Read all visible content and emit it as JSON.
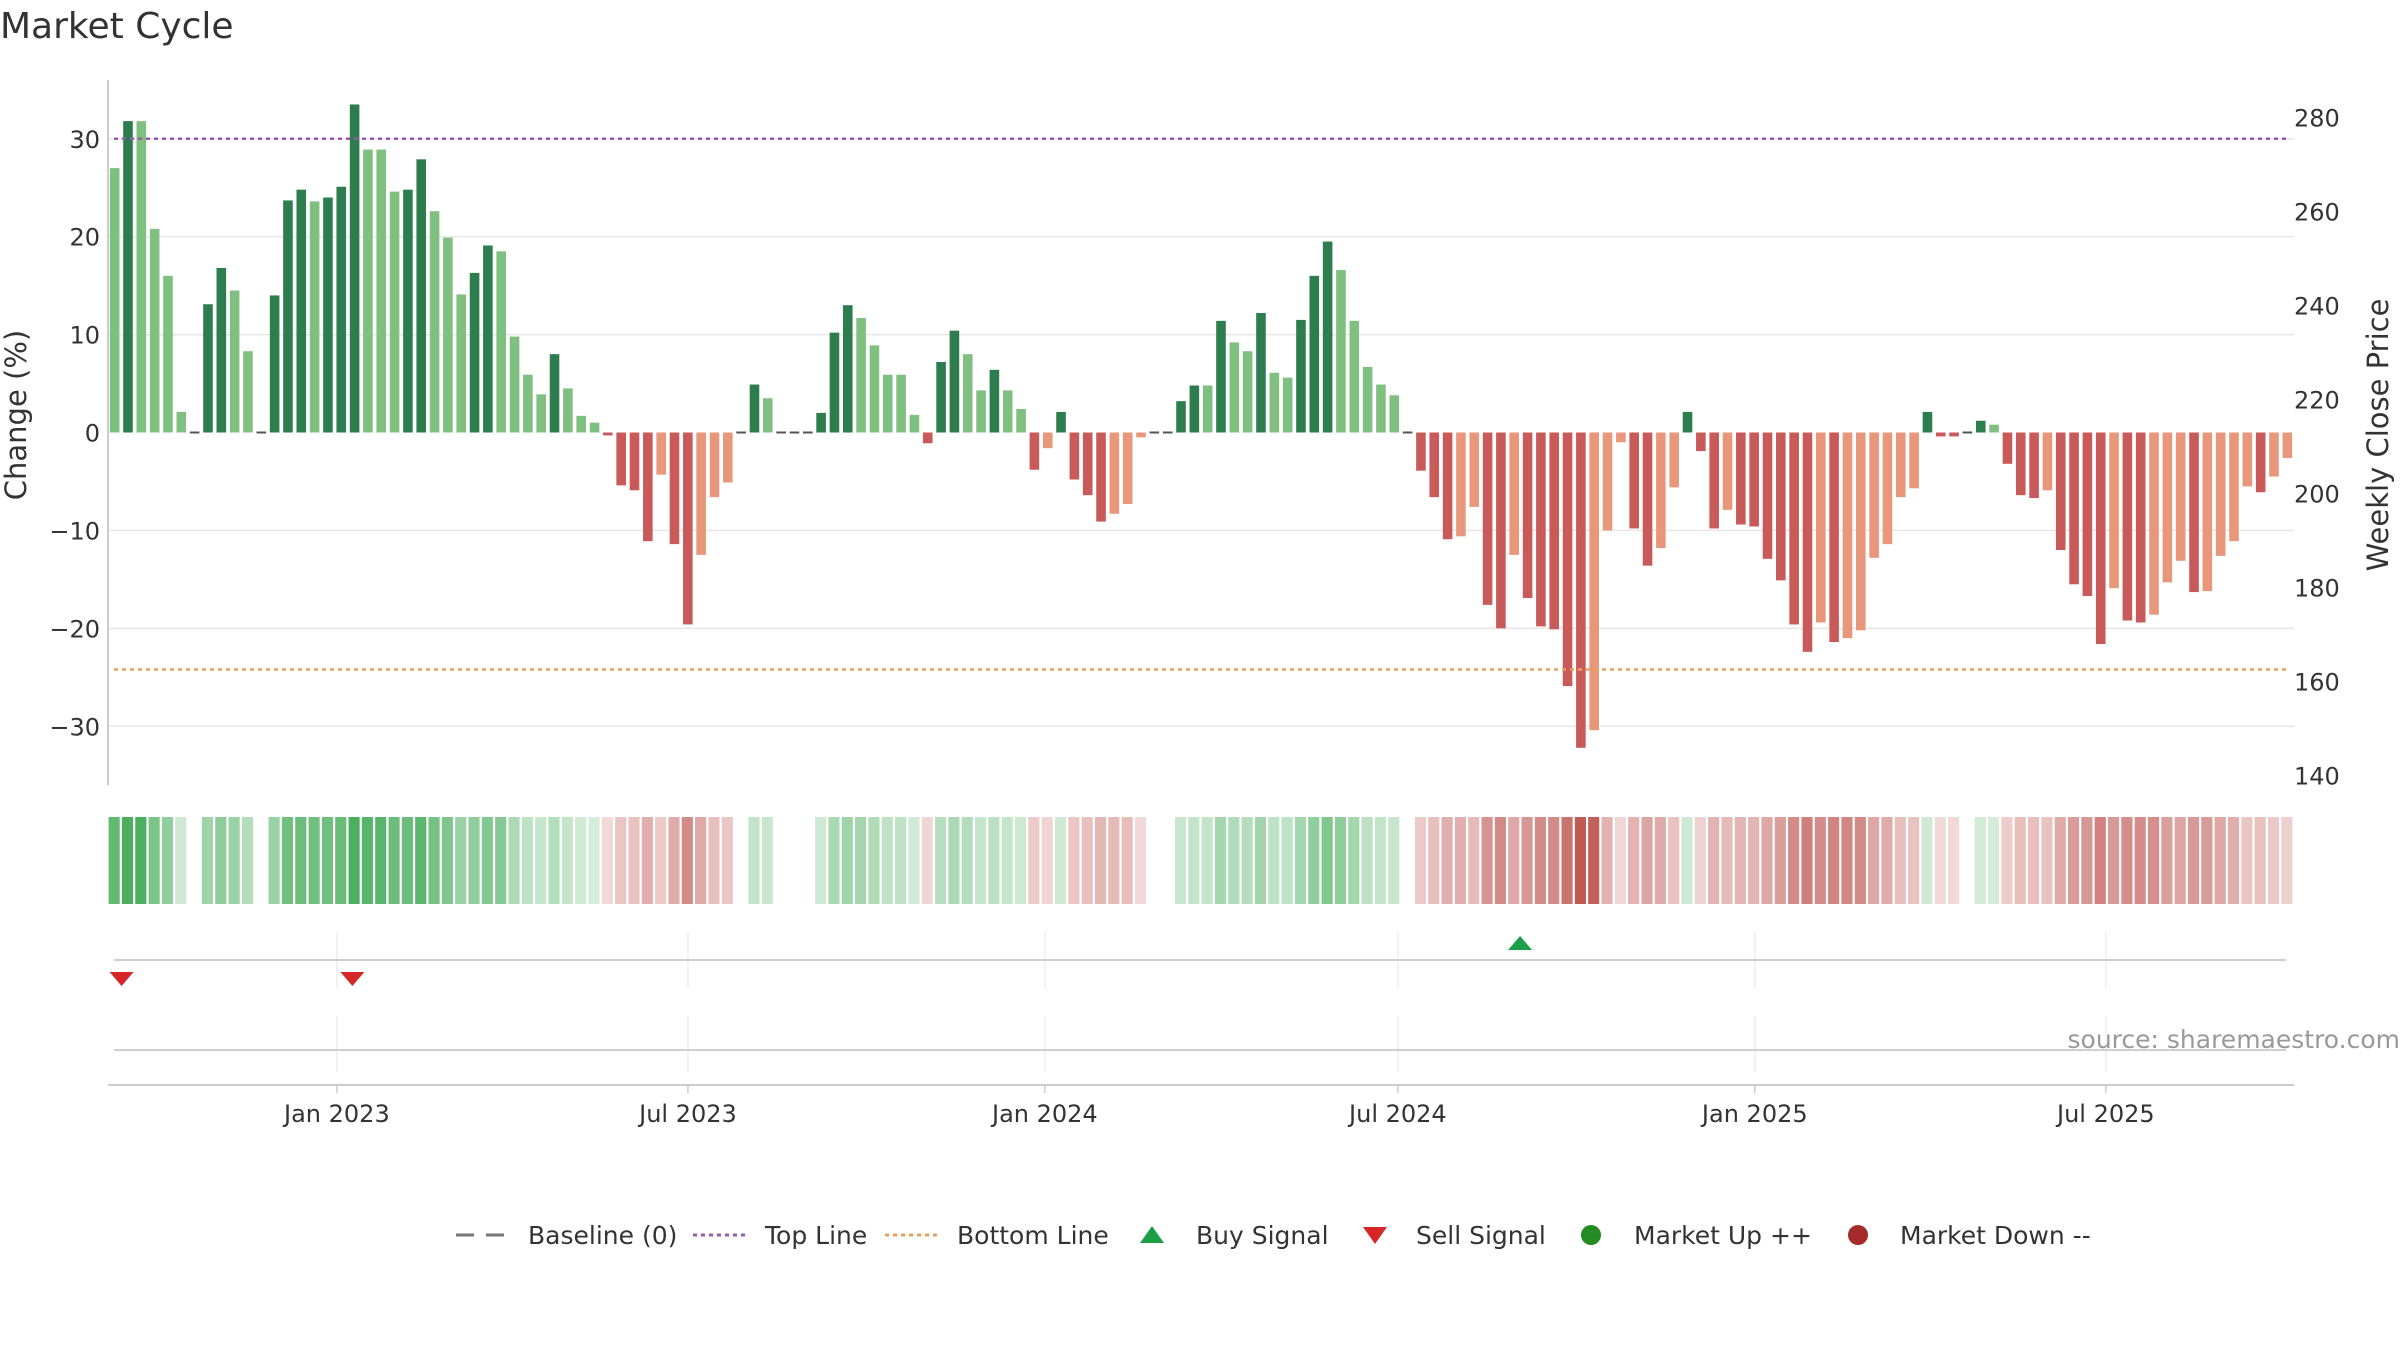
{
  "chart_data": {
    "type": "bar",
    "title": "Market Cycle",
    "ylabel": "Change (%)",
    "y2label": "Weekly Close Price",
    "ylim": [
      -36,
      36
    ],
    "y2lim": [
      138,
      288
    ],
    "yticks": [
      -30,
      -20,
      -10,
      0,
      10,
      20,
      30
    ],
    "y2ticks": [
      140,
      160,
      180,
      200,
      220,
      240,
      260,
      280
    ],
    "top_line": 30,
    "bottom_line": -24.2,
    "x_start": "2022-09-05",
    "x_end": "2025-10-06",
    "xticks": [
      {
        "date": "2023-01-01",
        "label": "Jan 2023"
      },
      {
        "date": "2023-07-01",
        "label": "Jul 2023"
      },
      {
        "date": "2024-01-01",
        "label": "Jan 2024"
      },
      {
        "date": "2024-07-01",
        "label": "Jul 2024"
      },
      {
        "date": "2025-01-01",
        "label": "Jan 2025"
      },
      {
        "date": "2025-07-01",
        "label": "Jul 2025"
      }
    ],
    "series": [
      {
        "values": [
          27,
          31.8,
          31.8,
          20.8,
          16,
          2.1,
          0,
          13.1,
          16.8,
          14.5,
          8.3,
          0,
          14,
          23.7,
          24.8,
          23.6,
          24,
          25.1,
          33.5,
          28.9,
          28.9,
          24.6,
          24.8,
          27.9,
          22.6,
          19.9,
          14.1,
          16.3,
          19.1,
          18.5,
          9.8,
          5.9,
          3.9,
          8,
          4.5,
          1.7,
          1,
          -0.3,
          -5.4,
          -5.9,
          -11.1,
          -4.3,
          -11.4,
          -19.6,
          -12.5,
          -6.6,
          -5.1,
          0,
          4.9,
          3.5,
          0,
          0,
          0,
          2,
          10.2,
          13,
          11.7,
          8.9,
          5.9,
          5.9,
          1.8,
          -1.1,
          7.2,
          10.4,
          8,
          4.3,
          6.4,
          4.3,
          2.4,
          -3.8,
          -1.6,
          2.1,
          -4.8,
          -6.4,
          -9.1,
          -8.3,
          -7.3,
          -0.5,
          0,
          0,
          3.2,
          4.8,
          4.8,
          11.4,
          9.2,
          8.3,
          12.2,
          6.1,
          5.6,
          11.5,
          16,
          19.5,
          16.6,
          11.4,
          6.7,
          4.9,
          3.8,
          0,
          -3.9,
          -6.6,
          -10.9,
          -10.6,
          -7.6,
          -17.6,
          -20,
          -12.5,
          -16.9,
          -19.8,
          -20.1,
          -25.9,
          -32.2,
          -30.4,
          -10,
          -1,
          -9.8,
          -13.6,
          -11.8,
          -5.6,
          2.1,
          -1.9,
          -9.8,
          -7.9,
          -9.4,
          -9.6,
          -12.9,
          -15.1,
          -19.6,
          -22.4,
          -19.4,
          -21.4,
          -21,
          -20.2,
          -12.8,
          -11.4,
          -6.6,
          -5.7,
          2.1,
          -0.4,
          -0.4,
          0,
          1.2,
          0.8,
          -3.2,
          -6.4,
          -6.7,
          -5.9,
          -12,
          -15.5,
          -16.7,
          -21.6,
          -15.9,
          -19.2,
          -19.4,
          -18.6,
          -15.3,
          -13.1,
          -16.3,
          -16.2,
          -12.6,
          -11.1,
          -5.5,
          -6.1,
          -4.5,
          -2.6
        ]
      }
    ],
    "legend": [
      {
        "label": "Baseline (0)",
        "marker": "dash",
        "color": "#777777"
      },
      {
        "label": "Top Line",
        "marker": "dotted",
        "color": "#9b59b6"
      },
      {
        "label": "Bottom Line",
        "marker": "dotted",
        "color": "#e9a05a"
      },
      {
        "label": "Buy Signal",
        "marker": "triangle-up",
        "color": "#1f9e4a"
      },
      {
        "label": "Sell Signal",
        "marker": "triangle-down",
        "color": "#d62728"
      },
      {
        "label": "Market Up ++",
        "marker": "circle",
        "color": "#228b22"
      },
      {
        "label": "Market Down --",
        "marker": "circle",
        "color": "#a52a2a"
      }
    ],
    "legend_position": "bottom",
    "signals": [
      {
        "type": "sell",
        "date": "2022-09-12"
      },
      {
        "type": "sell",
        "date": "2023-01-09"
      },
      {
        "type": "buy",
        "date": "2024-09-02"
      }
    ],
    "source": "source: sharemaestro.com"
  },
  "colors": {
    "up_strong": "#2e7d4f",
    "up_light": "#7fbf7f",
    "down_strong": "#c85a5a",
    "down_light": "#e8977a",
    "heat_up": "#4caf5f",
    "heat_down": "#c05a55",
    "grid": "#e6e6e6",
    "axis": "#cccccc"
  }
}
